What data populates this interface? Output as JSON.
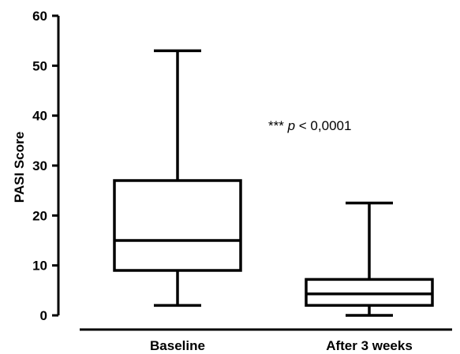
{
  "chart_data": {
    "type": "box",
    "title": "",
    "xlabel": "",
    "ylabel": "PASI Score",
    "ylim": [
      0,
      60
    ],
    "yticks": [
      0,
      10,
      20,
      30,
      40,
      50,
      60
    ],
    "categories": [
      "Baseline",
      "After 3 weeks"
    ],
    "boxes": [
      {
        "category": "Baseline",
        "min": 2,
        "q1": 9,
        "median": 15,
        "q3": 27,
        "max": 53
      },
      {
        "category": "After 3 weeks",
        "min": 0,
        "q1": 2,
        "median": 4.3,
        "q3": 7.2,
        "max": 22.5
      }
    ],
    "annotation": {
      "stars": "***",
      "p": "p",
      "rest": " < 0,0001"
    },
    "grid": false,
    "colors": {
      "stroke": "#000000",
      "fill": "#ffffff"
    }
  }
}
